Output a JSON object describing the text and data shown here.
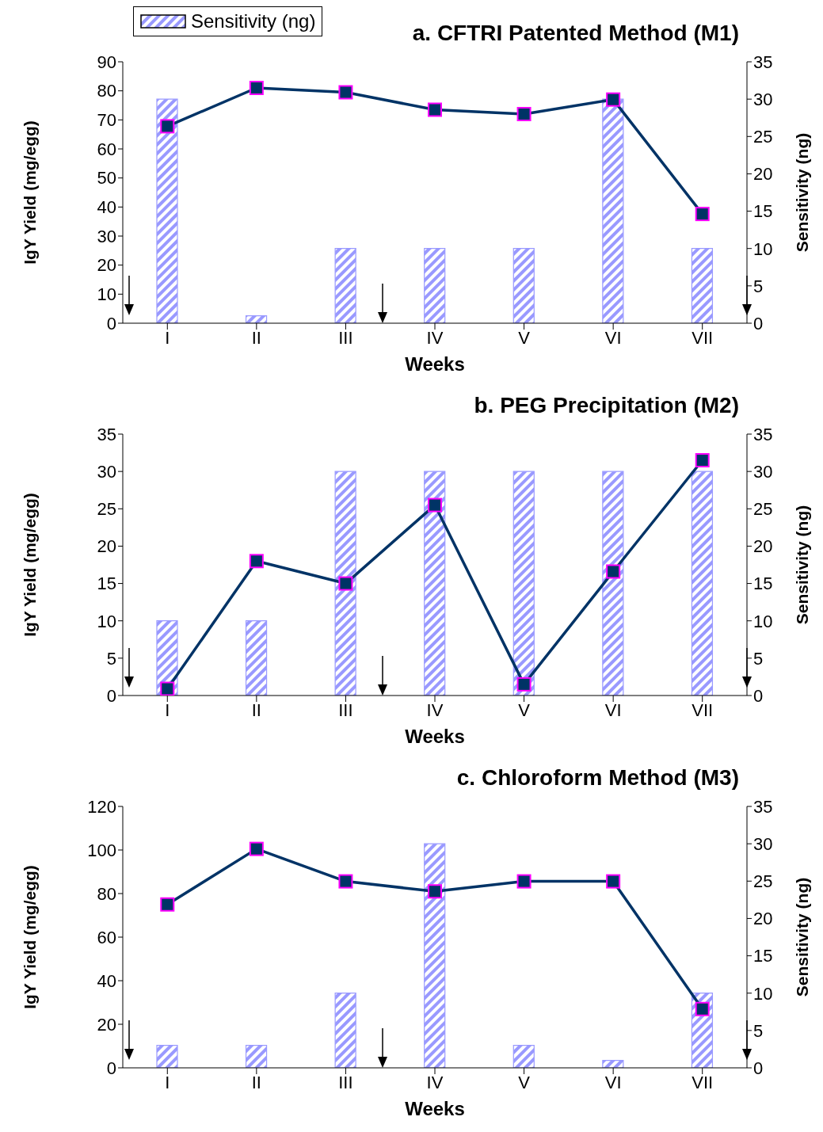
{
  "chart_data": [
    {
      "type": "bar",
      "title": "a. CFTRI Patented Method (M1)",
      "xlabel": "Weeks",
      "ylabel": "IgY Yield (mg/egg)",
      "y2label": "Sensitivity (ng)",
      "categories": [
        "I",
        "II",
        "III",
        "IV",
        "V",
        "VI",
        "VII"
      ],
      "series": [
        {
          "name": "Sensitivity (ng)",
          "axis": "y2",
          "color": "#9999ff",
          "values": [
            30,
            1,
            10,
            10,
            10,
            30,
            10
          ]
        },
        {
          "type": "line",
          "color": "#003366",
          "values": [
            67.8,
            81,
            79.5,
            73.5,
            72,
            77,
            37.6
          ]
        }
      ],
      "ylim": [
        0,
        90
      ],
      "yticks": [
        0,
        10,
        20,
        30,
        40,
        50,
        60,
        70,
        80,
        90
      ],
      "y2lim": [
        0,
        35
      ],
      "y2ticks": [
        0,
        5,
        10,
        15,
        20,
        25,
        30,
        35
      ],
      "marker": "square",
      "legend": "top left"
    },
    {
      "type": "bar",
      "title": "b. PEG Precipitation (M2)",
      "xlabel": "Weeks",
      "ylabel": "IgY Yield (mg/egg)",
      "y2label": "Sensitivity (ng)",
      "categories": [
        "I",
        "II",
        "III",
        "IV",
        "V",
        "VI",
        "VII"
      ],
      "series": [
        {
          "axis": "y2",
          "color": "#9999ff",
          "values": [
            10,
            10,
            30,
            30,
            30,
            30,
            30
          ]
        },
        {
          "type": "line",
          "color": "#003366",
          "values": [
            0.9,
            18,
            15,
            25.5,
            1.5,
            16.6,
            31.5
          ]
        }
      ],
      "ylim": [
        0,
        35
      ],
      "yticks": [
        0,
        5,
        10,
        15,
        20,
        25,
        30,
        35
      ],
      "y2lim": [
        0,
        35
      ],
      "y2ticks": [
        0,
        5,
        10,
        15,
        20,
        25,
        30,
        35
      ],
      "marker": "square"
    },
    {
      "type": "bar",
      "title": "c. Chloroform Method (M3)",
      "xlabel": "Weeks",
      "ylabel": "IgY Yield (mg/egg)",
      "y2label": "Sensitivity (ng)",
      "categories": [
        "I",
        "II",
        "III",
        "IV",
        "V",
        "VI",
        "VII"
      ],
      "series": [
        {
          "axis": "y2",
          "color": "#9999ff",
          "values": [
            3,
            3,
            10,
            30,
            3,
            1,
            10
          ]
        },
        {
          "type": "line",
          "color": "#003366",
          "values": [
            75,
            100.5,
            85.6,
            81,
            85.6,
            85.6,
            27
          ]
        }
      ],
      "ylim": [
        0,
        120
      ],
      "yticks": [
        0,
        20,
        40,
        60,
        80,
        100,
        120
      ],
      "y2lim": [
        0,
        35
      ],
      "y2ticks": [
        0,
        5,
        10,
        15,
        20,
        25,
        30,
        35
      ],
      "marker": "square"
    }
  ]
}
